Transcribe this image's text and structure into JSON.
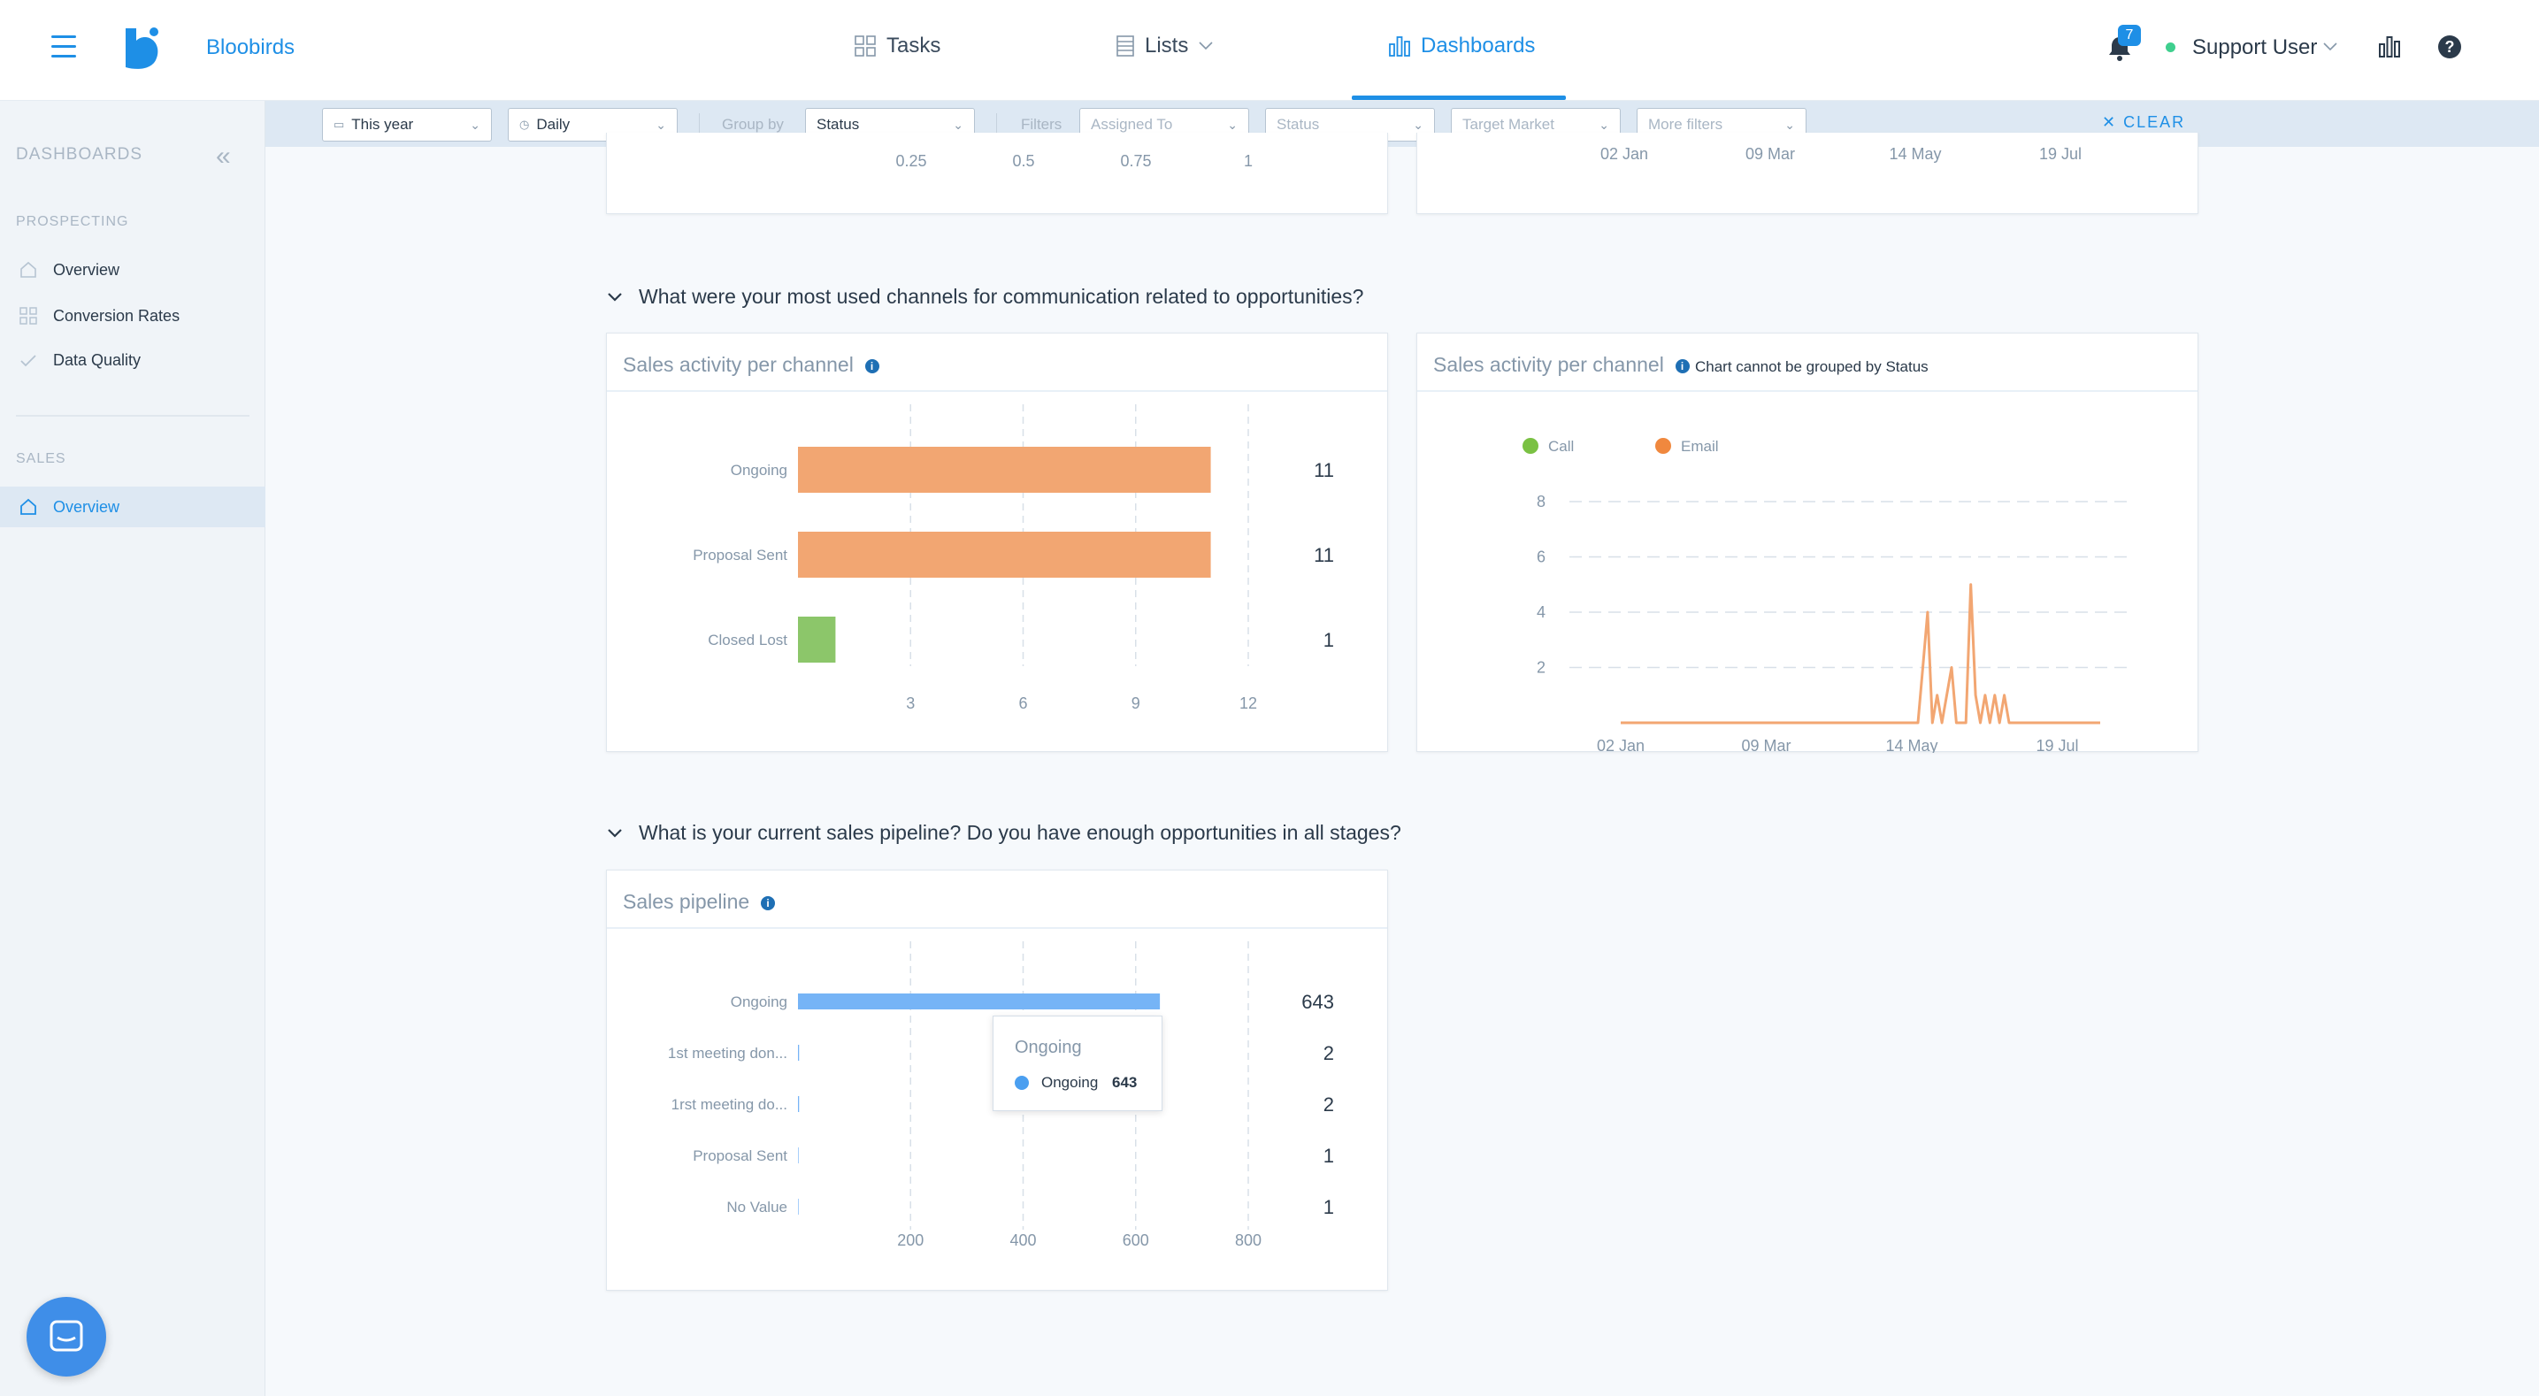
{
  "app": {
    "brand": "Bloobirds",
    "nav": {
      "tasks": "Tasks",
      "lists": "Lists",
      "dashboards": "Dashboards"
    },
    "notifications_count": "7",
    "user_name": "Support User"
  },
  "sidebar": {
    "title": "DASHBOARDS",
    "sections": [
      {
        "label": "PROSPECTING",
        "items": [
          "Overview",
          "Conversion Rates",
          "Data Quality"
        ]
      },
      {
        "label": "SALES",
        "items": [
          "Overview"
        ]
      }
    ]
  },
  "filters": {
    "date_range": "This year",
    "granularity": "Daily",
    "group_by_label": "Group by",
    "group_by_value": "Status",
    "filters_label": "Filters",
    "assigned_to": "Assigned To",
    "status": "Status",
    "target_market": "Target Market",
    "more_filters": "More filters",
    "clear": "CLEAR"
  },
  "top_partial": {
    "left_ticks": [
      "0.25",
      "0.5",
      "0.75",
      "1"
    ],
    "right_ticks": [
      "02 Jan",
      "09 Mar",
      "14 May",
      "19 Jul"
    ]
  },
  "section1": {
    "question": "What were your most used channels for communication related to opportunities?",
    "bar_panel_title": "Sales activity per channel",
    "line_panel_title": "Sales activity per channel",
    "line_panel_note": "Chart cannot be grouped by Status"
  },
  "section2": {
    "question": "What is your current sales pipeline? Do you have enough opportunities in all stages?",
    "panel_title": "Sales pipeline"
  },
  "tooltip": {
    "title": "Ongoing",
    "series": "Ongoing",
    "value": "643"
  },
  "colors": {
    "accent": "#1e8fe6",
    "orange": "#f2a672",
    "green": "#8cc66a",
    "blue": "#76b4f6"
  },
  "chart_data": [
    {
      "type": "bar",
      "orientation": "horizontal",
      "title": "Sales activity per channel",
      "categories": [
        "Ongoing",
        "Proposal Sent",
        "Closed Lost"
      ],
      "values": [
        11,
        11,
        1
      ],
      "value_labels": [
        "11",
        "11",
        "1"
      ],
      "colors": [
        "#f2a672",
        "#f2a672",
        "#8cc66a"
      ],
      "ticks": [
        "3",
        "6",
        "9",
        "12"
      ],
      "xlim": [
        0,
        12
      ]
    },
    {
      "type": "line",
      "title": "Sales activity per channel",
      "legend": [
        {
          "name": "Call",
          "color": "#7ac143"
        },
        {
          "name": "Email",
          "color": "#f0883e"
        }
      ],
      "x_ticks": [
        "02 Jan",
        "09 Mar",
        "14 May",
        "19 Jul"
      ],
      "y_ticks": [
        "8",
        "6",
        "4",
        "2"
      ],
      "ylim": [
        0,
        8
      ],
      "series": [
        {
          "name": "Email",
          "color": "#f2a672",
          "points": [
            [
              0,
              0
            ],
            [
              0.62,
              0
            ],
            [
              0.63,
              2
            ],
            [
              0.64,
              4
            ],
            [
              0.65,
              0
            ],
            [
              0.66,
              1
            ],
            [
              0.67,
              0
            ],
            [
              0.69,
              2
            ],
            [
              0.7,
              0
            ],
            [
              0.72,
              0
            ],
            [
              0.73,
              5
            ],
            [
              0.74,
              1
            ],
            [
              0.75,
              0
            ],
            [
              0.76,
              1
            ],
            [
              0.77,
              0
            ],
            [
              0.78,
              1
            ],
            [
              0.79,
              0
            ],
            [
              0.8,
              1
            ],
            [
              0.81,
              0
            ],
            [
              1,
              0
            ]
          ]
        }
      ]
    },
    {
      "type": "bar",
      "orientation": "horizontal",
      "title": "Sales pipeline",
      "categories": [
        "Ongoing",
        "1st meeting don...",
        "1rst meeting do...",
        "Proposal Sent",
        "No Value"
      ],
      "values": [
        643,
        2,
        2,
        1,
        1
      ],
      "value_labels": [
        "643",
        "2",
        "2",
        "1",
        "1"
      ],
      "colors": [
        "#76b4f6",
        "#76b4f6",
        "#76b4f6",
        "#76b4f6",
        "#76b4f6"
      ],
      "ticks": [
        "200",
        "400",
        "600",
        "800"
      ],
      "xlim": [
        0,
        800
      ]
    }
  ]
}
